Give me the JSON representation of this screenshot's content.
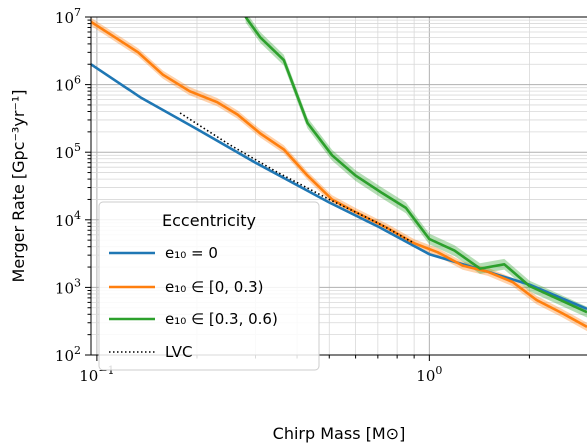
{
  "chart_data": {
    "type": "line",
    "xlabel": "Chirp Mass [M⊙]",
    "ylabel": "Merger Rate [Gpc⁻³yr⁻¹]",
    "xscale": "log",
    "yscale": "log",
    "xlim": [
      0.096,
      2.98
    ],
    "ylim": [
      100,
      10000000
    ],
    "x_ticks": [
      {
        "base": "10",
        "exp": "−1",
        "value": 0.1
      },
      {
        "base": "10",
        "exp": "0",
        "value": 1
      }
    ],
    "y_ticks": [
      {
        "base": "10",
        "exp": "2",
        "value": 100
      },
      {
        "base": "10",
        "exp": "3",
        "value": 1000
      },
      {
        "base": "10",
        "exp": "4",
        "value": 10000
      },
      {
        "base": "10",
        "exp": "5",
        "value": 100000
      },
      {
        "base": "10",
        "exp": "6",
        "value": 1000000
      },
      {
        "base": "10",
        "exp": "7",
        "value": 10000000
      }
    ],
    "grid": true,
    "legend": {
      "title": "Eccentricity",
      "placement": "lower-left",
      "entries": [
        "e₁₀ = 0",
        "e₁₀ ∈ [0, 0.3)",
        "e₁₀ ∈ [0.3, 0.6)",
        "LVC"
      ]
    },
    "series": [
      {
        "name": "e₁₀ = 0",
        "color": "#1f77b4",
        "style": "solid",
        "x": [
          0.096,
          0.135,
          0.2,
          0.3,
          0.5,
          0.7,
          1.0,
          1.5,
          2.0,
          2.98
        ],
        "y": [
          2000000,
          650000,
          220000,
          70000,
          18000,
          8000,
          3100,
          1700,
          1100,
          480
        ]
      },
      {
        "name": "e₁₀ ∈ [0, 0.3)",
        "color": "#ff7f0e",
        "style": "solid",
        "band": 0.15,
        "x": [
          0.096,
          0.133,
          0.158,
          0.19,
          0.23,
          0.265,
          0.31,
          0.365,
          0.43,
          0.51,
          0.6,
          0.75,
          0.9,
          1.06,
          1.26,
          1.5,
          1.78,
          2.1,
          2.5,
          2.98
        ],
        "y": [
          8500000,
          3000000,
          1400000,
          800000,
          550000,
          360000,
          190000,
          110000,
          45000,
          20000,
          13000,
          7500,
          4500,
          3300,
          2100,
          1700,
          1200,
          650,
          420,
          260
        ]
      },
      {
        "name": "e₁₀ ∈ [0.3, 0.6)",
        "color": "#2ca02c",
        "style": "solid",
        "band": 0.2,
        "x": [
          0.28,
          0.31,
          0.365,
          0.43,
          0.51,
          0.6,
          0.72,
          0.85,
          1.0,
          1.19,
          1.42,
          1.68,
          2.0,
          2.4,
          2.98
        ],
        "y": [
          10000000,
          5000000,
          2300000,
          270000,
          90000,
          45000,
          25000,
          15000,
          5200,
          3500,
          1900,
          2200,
          1050,
          700,
          430
        ]
      },
      {
        "name": "LVC",
        "color": "#000000",
        "style": "dotted",
        "x": [
          0.178,
          0.25,
          0.35,
          0.5,
          0.7,
          0.9
        ],
        "y": [
          380000,
          130000,
          50000,
          20000,
          9000,
          4500
        ]
      }
    ]
  }
}
